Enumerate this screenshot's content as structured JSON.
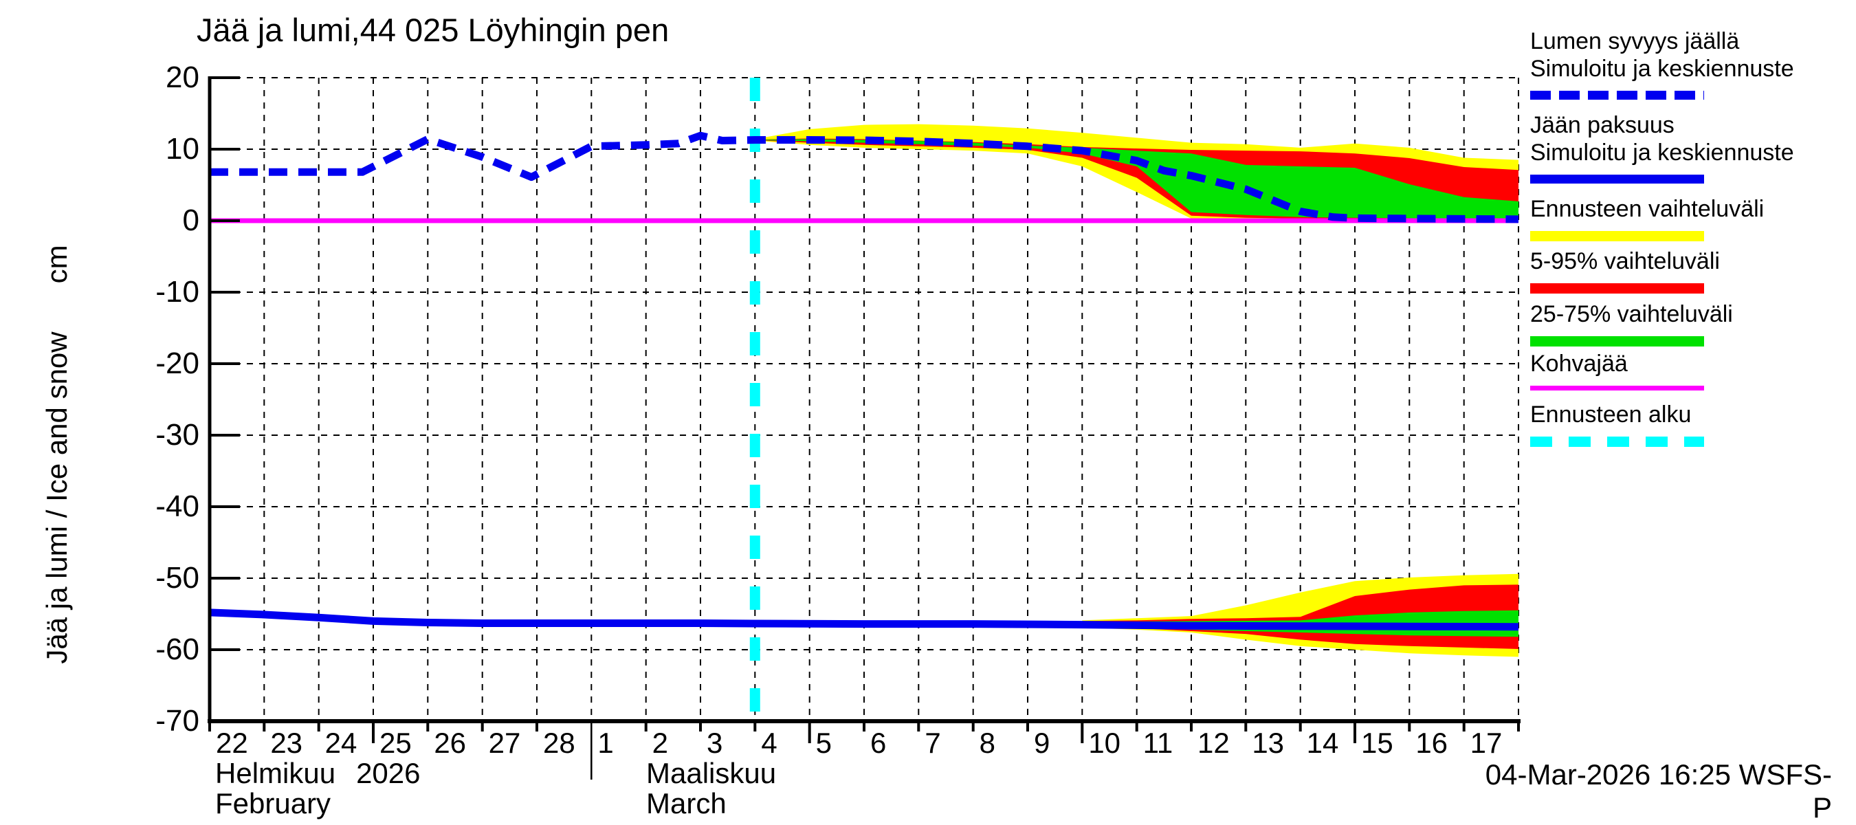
{
  "title": "Jää ja lumi,44 025 Löyhingin pen",
  "y_axis": {
    "label": "Jää ja lumi / Ice and snow      cm",
    "ticks": [
      "20",
      "10",
      "0",
      "-10",
      "-20",
      "-30",
      "-40",
      "-50",
      "-60",
      "-70"
    ],
    "tick_values": [
      20,
      10,
      0,
      -10,
      -20,
      -30,
      -40,
      -50,
      -60,
      -70
    ]
  },
  "x_axis": {
    "february_days": [
      "22",
      "23",
      "24",
      "25",
      "26",
      "27",
      "28"
    ],
    "march_days": [
      "1",
      "2",
      "3",
      "4",
      "5",
      "6",
      "7",
      "8",
      "9",
      "10",
      "11",
      "12",
      "13",
      "14",
      "15",
      "16",
      "17"
    ],
    "month_february_fi": "Helmikuu",
    "month_february_year": "2026",
    "month_february_en": "February",
    "month_march_fi": "Maaliskuu",
    "month_march_en": "March"
  },
  "footer": {
    "generated": "04-Mar-2026 16:25 WSFS-P"
  },
  "colors": {
    "simulated_line": "#0000F0",
    "forecast_range": "#FFFF00",
    "range_5_95": "#FF0000",
    "range_25_75": "#00E100",
    "kohvajaa": "#FF00FF",
    "forecast_start": "#00FFFF",
    "grid": "#000000"
  },
  "legend": {
    "items": [
      {
        "lines": [
          "Lumen syvyys jäällä",
          "Simuloitu ja keskiennuste"
        ],
        "color": "#0000F0",
        "style": "dashed",
        "height": 13
      },
      {
        "lines": [
          "Jään paksuus",
          "Simuloitu ja keskiennuste"
        ],
        "color": "#0000F0",
        "style": "solid",
        "height": 13
      },
      {
        "lines": [
          "Ennusteen vaihteluväli"
        ],
        "color": "#FFFF00",
        "style": "solid",
        "height": 15
      },
      {
        "lines": [
          "5-95% vaihteluväli"
        ],
        "color": "#FF0000",
        "style": "solid",
        "height": 15
      },
      {
        "lines": [
          "25-75% vaihteluväli"
        ],
        "color": "#00E100",
        "style": "solid",
        "height": 15
      },
      {
        "lines": [
          "Kohvajää"
        ],
        "color": "#FF00FF",
        "style": "solid",
        "height": 7
      },
      {
        "lines": [
          "Ennusteen alku"
        ],
        "color": "#00FFFF",
        "style": "dashed-wide",
        "height": 15
      }
    ]
  },
  "chart_data": {
    "type": "line",
    "title": "Jää ja lumi,44 025 Löyhingin pen",
    "ylabel": "Jää ja lumi / Ice and snow (cm)",
    "ylim": [
      -70,
      20
    ],
    "grid": true,
    "x_unit": "days since 22-Feb-2026 (0 = Feb 22, 10 = Mar 4 forecast start, 24 = end of Mar 17)",
    "forecast_start_day": 10,
    "forecast_start_date": "04-Mar-2026",
    "series": [
      {
        "name": "Lumen syvyys jäällä - simuloitu ja keskiennuste",
        "unit": "cm",
        "style": "dashed",
        "color": "#0000F0",
        "x": [
          0,
          1,
          2,
          2.8,
          4,
          5,
          5.9,
          7,
          8,
          8.6,
          9,
          9.4,
          10,
          11,
          12,
          13,
          14,
          15,
          16,
          17,
          17.5,
          18,
          19,
          20,
          20.6,
          21,
          22,
          23,
          24
        ],
        "y": [
          6.8,
          6.8,
          6.8,
          6.8,
          11.4,
          8.9,
          6.1,
          10.4,
          10.6,
          10.8,
          11.9,
          11.2,
          11.3,
          11.3,
          11.25,
          11.1,
          10.8,
          10.4,
          9.8,
          8.4,
          7.0,
          6.3,
          4.4,
          1.3,
          0.5,
          0.35,
          0.3,
          0.25,
          0.2
        ]
      },
      {
        "name": "Jään paksuus - simuloitu ja keskiennuste",
        "unit": "cm",
        "style": "solid",
        "color": "#0000F0",
        "x": [
          0,
          1,
          2,
          3,
          4,
          5,
          7,
          9,
          10,
          12,
          14,
          16,
          18,
          20,
          22,
          24
        ],
        "y": [
          -54.8,
          -55.1,
          -55.5,
          -56.0,
          -56.2,
          -56.3,
          -56.3,
          -56.3,
          -56.35,
          -56.4,
          -56.4,
          -56.5,
          -56.65,
          -56.7,
          -56.75,
          -56.8
        ]
      },
      {
        "name": "Kohvajää",
        "unit": "cm",
        "style": "solid",
        "color": "#FF00FF",
        "x": [
          0,
          24
        ],
        "y": [
          0,
          0
        ]
      }
    ],
    "bands": [
      {
        "name": "Lumen syvyys - ennusteen vaihteluväli",
        "color": "#FFFF00",
        "x": [
          10,
          11,
          12,
          13,
          14,
          15,
          16,
          17,
          18,
          19,
          20,
          21,
          22,
          23,
          24
        ],
        "upper": [
          11.4,
          12.8,
          13.4,
          13.5,
          13.3,
          12.9,
          12.3,
          11.6,
          10.9,
          10.7,
          10.2,
          10.8,
          10.2,
          8.8,
          8.5
        ],
        "lower": [
          11.2,
          10.6,
          10.2,
          10.0,
          9.8,
          9.4,
          7.6,
          4.0,
          0.3,
          0.15,
          0.1,
          0.1,
          0.05,
          0.05,
          0.05
        ]
      },
      {
        "name": "Lumen syvyys - 5-95% vaihteluväli",
        "color": "#FF0000",
        "x": [
          10,
          11,
          12,
          13,
          14,
          15,
          16,
          17,
          18,
          19,
          20,
          21,
          22,
          23,
          24
        ],
        "upper": [
          11.35,
          11.5,
          11.4,
          11.2,
          11.0,
          10.7,
          10.3,
          10.1,
          9.9,
          9.8,
          9.7,
          9.4,
          8.75,
          7.5,
          7.1
        ],
        "lower": [
          11.25,
          10.9,
          10.6,
          10.4,
          10.2,
          9.9,
          8.8,
          6.0,
          0.7,
          0.4,
          0.3,
          0.25,
          0.2,
          0.15,
          0.1
        ]
      },
      {
        "name": "Lumen syvyys - 25-75% vaihteluväli",
        "color": "#00E100",
        "x": [
          10,
          11,
          12,
          13,
          14,
          15,
          16,
          17,
          18,
          19,
          20,
          21,
          22,
          23,
          24
        ],
        "upper": [
          11.33,
          11.4,
          11.3,
          11.15,
          10.9,
          10.5,
          10.2,
          9.8,
          9.4,
          7.8,
          7.6,
          7.4,
          5.1,
          3.3,
          2.7
        ],
        "lower": [
          11.28,
          11.1,
          10.9,
          10.7,
          10.5,
          10.2,
          9.4,
          7.6,
          1.2,
          0.8,
          0.5,
          0.4,
          0.35,
          0.3,
          0.25
        ]
      },
      {
        "name": "Jään paksuus - ennusteen vaihteluväli",
        "color": "#FFFF00",
        "x": [
          16,
          17,
          18,
          19,
          20,
          21,
          22,
          23,
          24
        ],
        "upper": [
          -55.9,
          -55.6,
          -55.3,
          -53.8,
          -52.0,
          -50.4,
          -49.9,
          -49.6,
          -49.4
        ],
        "lower": [
          -56.9,
          -57.2,
          -57.6,
          -58.6,
          -59.5,
          -60.0,
          -60.5,
          -60.8,
          -61.0
        ]
      },
      {
        "name": "Jään paksuus - 5-95% vaihteluväli",
        "color": "#FF0000",
        "x": [
          16,
          17,
          18,
          19,
          20,
          21,
          22,
          23,
          24
        ],
        "upper": [
          -56.0,
          -55.9,
          -55.7,
          -55.6,
          -55.4,
          -52.5,
          -51.6,
          -51.0,
          -50.9
        ],
        "lower": [
          -56.8,
          -57.0,
          -57.4,
          -57.8,
          -58.6,
          -59.2,
          -59.5,
          -59.7,
          -59.9
        ]
      },
      {
        "name": "Jään paksuus - 25-75% vaihteluväli",
        "color": "#00E100",
        "x": [
          16,
          17,
          18,
          19,
          20,
          21,
          22,
          23,
          24
        ],
        "upper": [
          -56.1,
          -56.05,
          -56.0,
          -55.95,
          -55.9,
          -55.2,
          -54.8,
          -54.6,
          -54.5
        ],
        "lower": [
          -56.6,
          -56.9,
          -57.2,
          -57.4,
          -57.6,
          -57.8,
          -58.0,
          -58.1,
          -58.2
        ]
      }
    ],
    "vline": {
      "name": "Ennusteen alku",
      "day": 10,
      "color": "#00FFFF",
      "style": "dashed"
    }
  }
}
